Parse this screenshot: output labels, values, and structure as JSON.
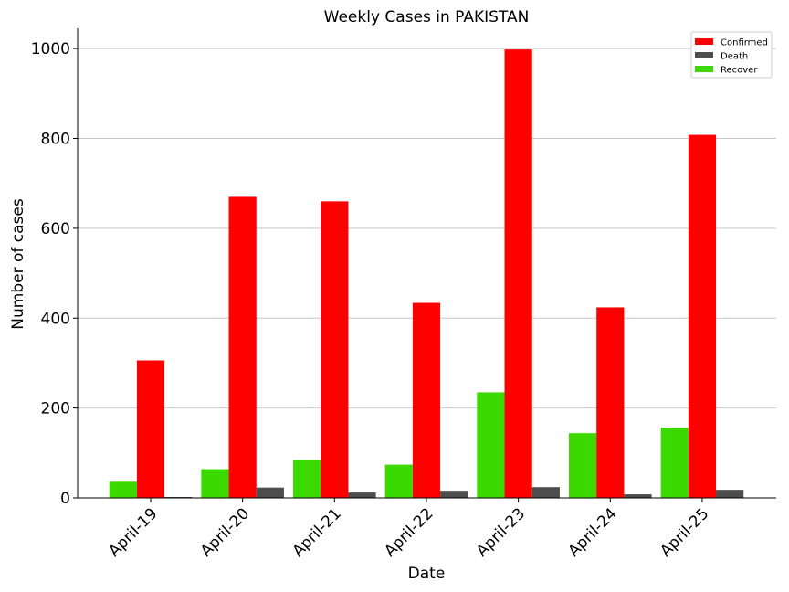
{
  "chart_data": {
    "type": "bar",
    "title": "Weekly Cases in PAKISTAN",
    "xlabel": "Date",
    "ylabel": "Number of cases",
    "ylim": [
      0,
      1045
    ],
    "yticks": [
      0,
      200,
      400,
      600,
      800,
      1000
    ],
    "grid": "horizontal",
    "legend_position": "top-right",
    "categories": [
      "April-19",
      "April-20",
      "April-21",
      "April-22",
      "April-23",
      "April-24",
      "April-25"
    ],
    "series": [
      {
        "name": "Recover",
        "color": "#3cd900",
        "values": [
          36,
          64,
          84,
          74,
          235,
          144,
          156
        ]
      },
      {
        "name": "Confirmed",
        "color": "#ff0000",
        "values": [
          306,
          670,
          660,
          434,
          998,
          424,
          808
        ]
      },
      {
        "name": "Death",
        "color": "#4d4d4d",
        "values": [
          2,
          23,
          12,
          16,
          24,
          8,
          18
        ]
      }
    ],
    "legend_order": [
      "Confirmed",
      "Death",
      "Recover"
    ]
  }
}
